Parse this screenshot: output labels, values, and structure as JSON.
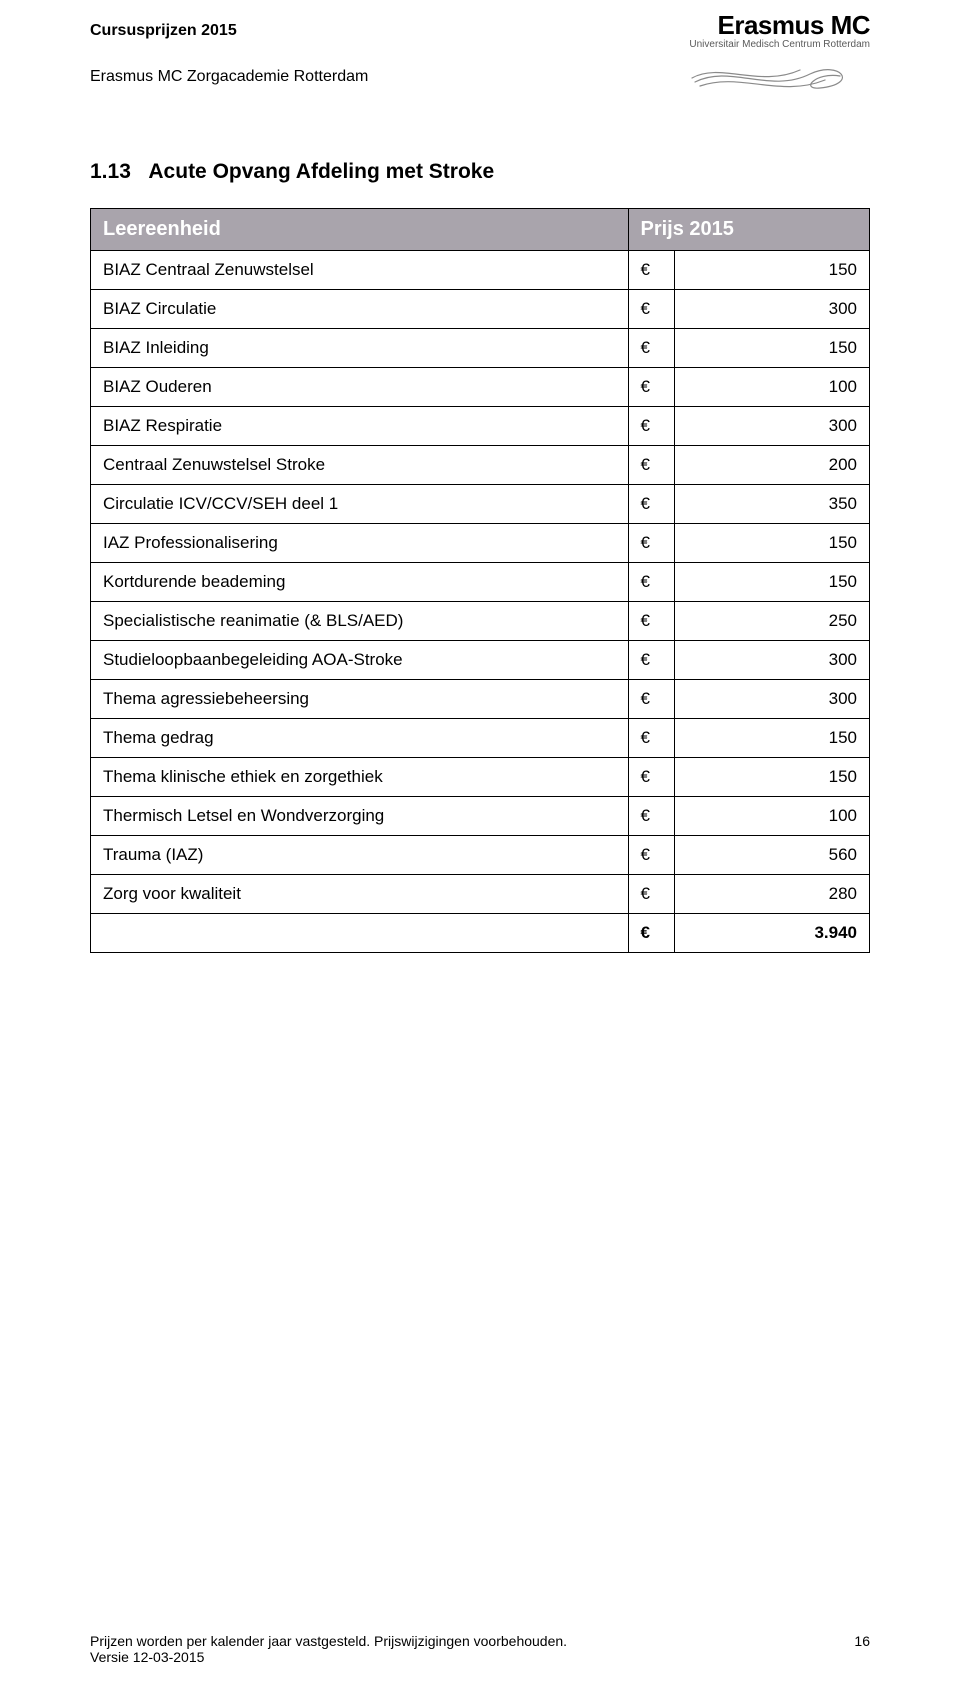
{
  "header": {
    "title": "Cursusprijzen 2015",
    "subtitle": "Erasmus MC Zorgacademie Rotterdam",
    "logo_main": "Erasmus MC",
    "logo_sub": "Universitair Medisch Centrum Rotterdam"
  },
  "section": {
    "number": "1.13",
    "title": "Acute Opvang Afdeling met Stroke"
  },
  "table": {
    "header_label": "Leereenheid",
    "header_price": "Prijs 2015",
    "currency": "€",
    "rows": [
      {
        "label": "BIAZ Centraal Zenuwstelsel",
        "value": "150"
      },
      {
        "label": "BIAZ Circulatie",
        "value": "300"
      },
      {
        "label": "BIAZ Inleiding",
        "value": "150"
      },
      {
        "label": "BIAZ Ouderen",
        "value": "100"
      },
      {
        "label": "BIAZ Respiratie",
        "value": "300"
      },
      {
        "label": "Centraal Zenuwstelsel Stroke",
        "value": "200"
      },
      {
        "label": "Circulatie ICV/CCV/SEH deel 1",
        "value": "350"
      },
      {
        "label": "IAZ Professionalisering",
        "value": "150"
      },
      {
        "label": "Kortdurende beademing",
        "value": "150"
      },
      {
        "label": "Specialistische reanimatie (& BLS/AED)",
        "value": "250"
      },
      {
        "label": "Studieloopbaanbegeleiding AOA-Stroke",
        "value": "300"
      },
      {
        "label": "Thema agressiebeheersing",
        "value": "300"
      },
      {
        "label": "Thema gedrag",
        "value": "150"
      },
      {
        "label": "Thema klinische ethiek en zorgethiek",
        "value": "150"
      },
      {
        "label": "Thermisch Letsel en Wondverzorging",
        "value": "100"
      },
      {
        "label": "Trauma (IAZ)",
        "value": "560"
      },
      {
        "label": "Zorg voor kwaliteit",
        "value": "280"
      }
    ],
    "total_value": "3.940"
  },
  "footer": {
    "line1": "Prijzen worden per kalender jaar vastgesteld. Prijswijzigingen voorbehouden.",
    "line2": "Versie 12-03-2015",
    "page": "16"
  },
  "style": {
    "header_bg": "#a9a4ac",
    "header_fg": "#ffffff",
    "border_color": "#000000",
    "body_font_size": 17,
    "title_font_size": 21,
    "table_header_font_size": 20,
    "logo_font_size": 26
  }
}
